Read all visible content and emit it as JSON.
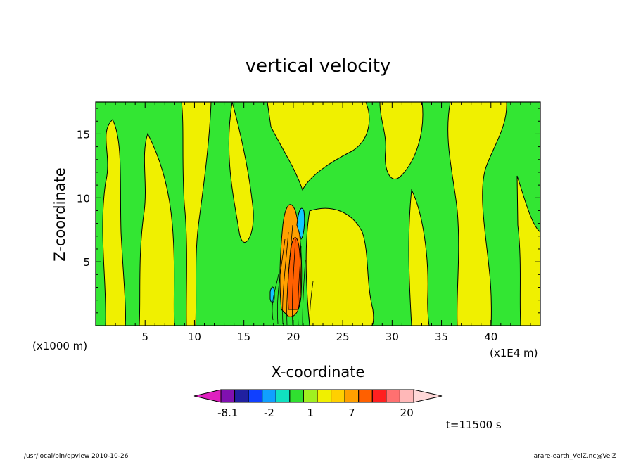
{
  "chart_data": {
    "type": "heatmap",
    "title": "vertical velocity",
    "xlabel": "X-coordinate",
    "ylabel": "Z-coordinate",
    "x_unit_left": "(x1000 m)",
    "x_unit_right": "(x1E4 m)",
    "xlim": [
      0,
      45
    ],
    "ylim": [
      0,
      17.5
    ],
    "x_ticks": [
      "5",
      "10",
      "15",
      "20",
      "25",
      "30",
      "35",
      "40"
    ],
    "y_ticks": [
      "5",
      "10",
      "15"
    ],
    "colorbar": {
      "colors": [
        "#e020c0",
        "#8010b0",
        "#2020a0",
        "#1040ff",
        "#10a0ff",
        "#10e0c0",
        "#30e030",
        "#a0f020",
        "#f0f000",
        "#ffd000",
        "#ffa000",
        "#ff6000",
        "#ff2020",
        "#ff7070",
        "#ffb8b8",
        "#ffd8d8"
      ],
      "labels": [
        "-8.1",
        "-2",
        "1",
        "7",
        "20"
      ]
    },
    "time_label": "t=11500 s",
    "footer_left": "/usr/local/bin/gpview  2010-10-26",
    "footer_right": "arare-earth_VelZ.nc@VelZ"
  }
}
